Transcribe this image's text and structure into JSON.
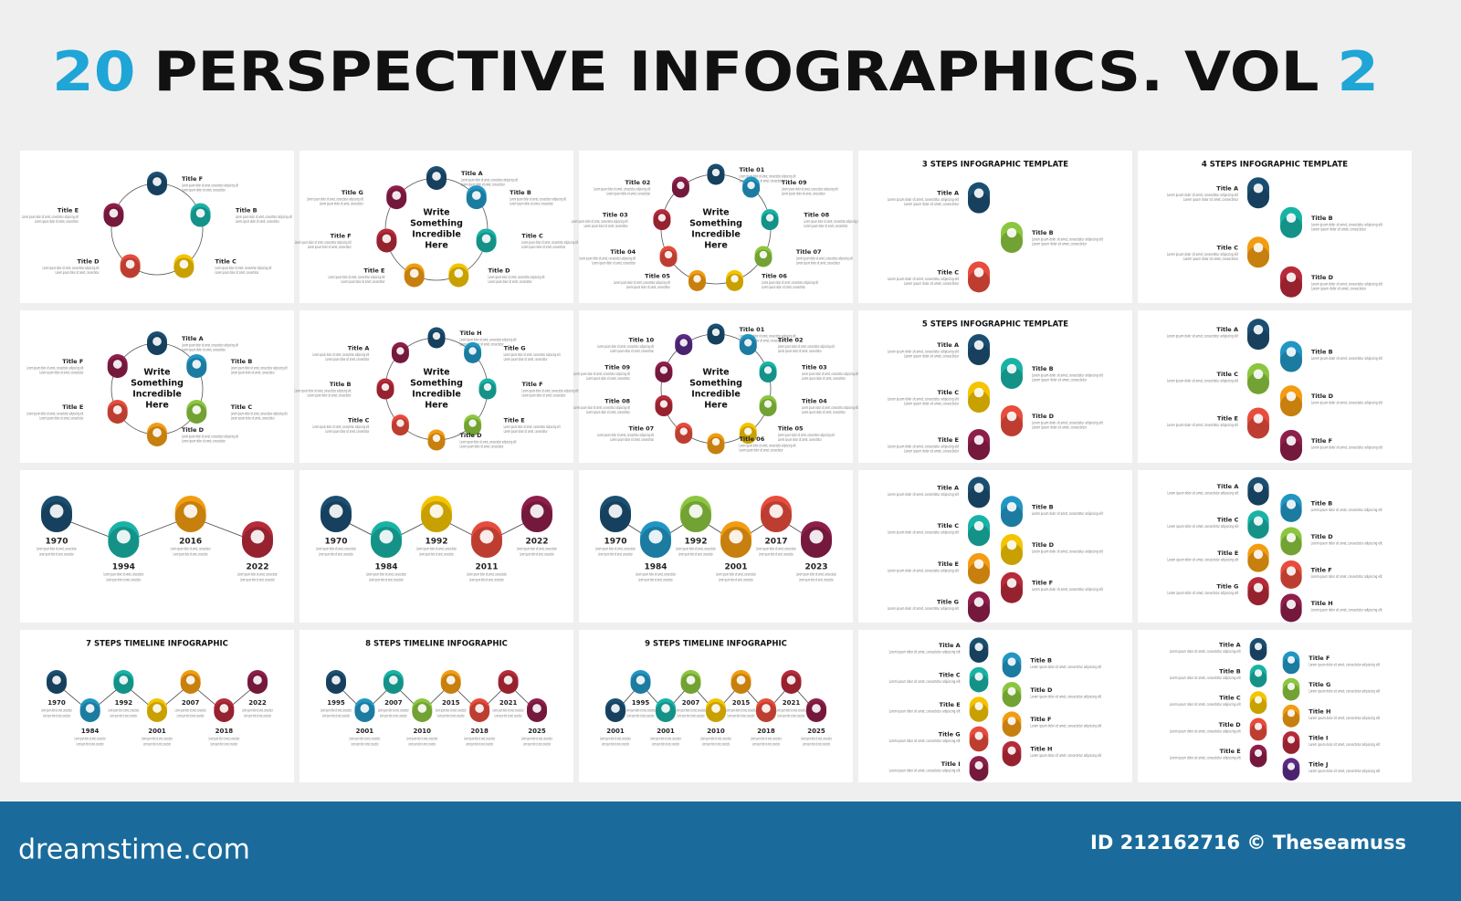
{
  "header": {
    "title_parts": [
      "20",
      "PERSPECTIVE INFOGRAPHICS. VOL",
      "2"
    ]
  },
  "palette": [
    "#1b4f72",
    "#2196c4",
    "#19b3a6",
    "#8cc63f",
    "#f5c400",
    "#f39c12",
    "#e74c3c",
    "#b72a3a",
    "#8e1e4a",
    "#5b2a86"
  ],
  "lorem": "Lorem ipsum dolor sit amet, consectetur adipiscing elit",
  "lorem_short": "Lorem ipsum dolor sit amet, consectetur",
  "center_text": [
    "Write",
    "Something",
    "Incredible",
    "Here"
  ],
  "panels": [
    {
      "kind": "cycle",
      "center": false,
      "items": [
        {
          "label": "Title F"
        },
        {
          "label": "Title B"
        },
        {
          "label": "Title C"
        },
        {
          "label": "Title D"
        },
        {
          "label": "Title E"
        }
      ]
    },
    {
      "kind": "cycle",
      "center": true,
      "items": [
        {
          "label": "Title A"
        },
        {
          "label": "Title B"
        },
        {
          "label": "Title C"
        },
        {
          "label": "Title D"
        },
        {
          "label": "Title E"
        },
        {
          "label": "Title F"
        },
        {
          "label": "Title G"
        }
      ]
    },
    {
      "kind": "cycle",
      "center": true,
      "items": [
        {
          "label": "Title 01"
        },
        {
          "label": "Title 09"
        },
        {
          "label": "Title 08"
        },
        {
          "label": "Title 07"
        },
        {
          "label": "Title 06"
        },
        {
          "label": "Title 05"
        },
        {
          "label": "Title 04"
        },
        {
          "label": "Title 03"
        },
        {
          "label": "Title 02"
        }
      ]
    },
    {
      "kind": "list",
      "heading": "3 STEPS INFOGRAPHIC TEMPLATE",
      "items": [
        {
          "label": "Title A"
        },
        {
          "label": "Title B"
        },
        {
          "label": "Title C"
        }
      ]
    },
    {
      "kind": "list",
      "heading": "4 STEPS INFOGRAPHIC TEMPLATE",
      "items": [
        {
          "label": "Title A"
        },
        {
          "label": "Title B"
        },
        {
          "label": "Title C"
        },
        {
          "label": "Title D"
        }
      ]
    },
    {
      "kind": "cycle",
      "center": true,
      "items": [
        {
          "label": "Title A"
        },
        {
          "label": "Title B"
        },
        {
          "label": "Title C"
        },
        {
          "label": "Title D"
        },
        {
          "label": "Title E"
        },
        {
          "label": "Title F"
        }
      ]
    },
    {
      "kind": "cycle",
      "center": true,
      "items": [
        {
          "label": "Title H"
        },
        {
          "label": "Title G"
        },
        {
          "label": "Title F"
        },
        {
          "label": "Title E"
        },
        {
          "label": "Title D"
        },
        {
          "label": "Title C"
        },
        {
          "label": "Title B"
        },
        {
          "label": "Title A"
        }
      ]
    },
    {
      "kind": "cycle",
      "center": true,
      "items": [
        {
          "label": "Title 01"
        },
        {
          "label": "Title 02"
        },
        {
          "label": "Title 03"
        },
        {
          "label": "Title 04"
        },
        {
          "label": "Title 05"
        },
        {
          "label": "Title 06"
        },
        {
          "label": "Title 07"
        },
        {
          "label": "Title 08"
        },
        {
          "label": "Title 09"
        },
        {
          "label": "Title 10"
        }
      ]
    },
    {
      "kind": "list",
      "heading": "5 STEPS INFOGRAPHIC TEMPLATE",
      "items": [
        {
          "label": "Title A"
        },
        {
          "label": "Title B"
        },
        {
          "label": "Title C"
        },
        {
          "label": "Title D"
        },
        {
          "label": "Title E"
        }
      ]
    },
    {
      "kind": "list",
      "items": [
        {
          "label": "Title A"
        },
        {
          "label": "Title B"
        },
        {
          "label": "Title C"
        },
        {
          "label": "Title D"
        },
        {
          "label": "Title E"
        },
        {
          "label": "Title F"
        }
      ]
    },
    {
      "kind": "timeline",
      "items": [
        {
          "label": "1970"
        },
        {
          "label": "1994"
        },
        {
          "label": "2016"
        },
        {
          "label": "2022"
        }
      ]
    },
    {
      "kind": "timeline",
      "items": [
        {
          "label": "1970"
        },
        {
          "label": "1984"
        },
        {
          "label": "1992"
        },
        {
          "label": "2011"
        },
        {
          "label": "2022"
        }
      ]
    },
    {
      "kind": "timeline",
      "items": [
        {
          "label": "1970"
        },
        {
          "label": "1984"
        },
        {
          "label": "1992"
        },
        {
          "label": "2001"
        },
        {
          "label": "2017"
        },
        {
          "label": "2023"
        }
      ]
    },
    {
      "kind": "list",
      "items": [
        {
          "label": "Title A"
        },
        {
          "label": "Title B"
        },
        {
          "label": "Title C"
        },
        {
          "label": "Title D"
        },
        {
          "label": "Title E"
        },
        {
          "label": "Title F"
        },
        {
          "label": "Title G"
        }
      ]
    },
    {
      "kind": "list",
      "items": [
        {
          "label": "Title A"
        },
        {
          "label": "Title B"
        },
        {
          "label": "Title C"
        },
        {
          "label": "Title D"
        },
        {
          "label": "Title E"
        },
        {
          "label": "Title F"
        },
        {
          "label": "Title G"
        },
        {
          "label": "Title H"
        }
      ]
    },
    {
      "kind": "timeline",
      "heading": "7 STEPS TIMELINE INFOGRAPHIC",
      "items": [
        {
          "label": "1970"
        },
        {
          "label": "1984"
        },
        {
          "label": "1992"
        },
        {
          "label": "2001"
        },
        {
          "label": "2007"
        },
        {
          "label": "2018"
        },
        {
          "label": "2022"
        }
      ]
    },
    {
      "kind": "timeline",
      "heading": "8 STEPS TIMELINE INFOGRAPHIC",
      "items": [
        {
          "label": "1995"
        },
        {
          "label": "2001"
        },
        {
          "label": "2007"
        },
        {
          "label": "2010"
        },
        {
          "label": "2015"
        },
        {
          "label": "2018"
        },
        {
          "label": "2021"
        },
        {
          "label": "2025"
        }
      ]
    },
    {
      "kind": "timeline",
      "heading": "9 STEPS TIMELINE INFOGRAPHIC",
      "start": "down",
      "items": [
        {
          "label": "2001"
        },
        {
          "label": "1995"
        },
        {
          "label": "2001"
        },
        {
          "label": "2007"
        },
        {
          "label": "2010"
        },
        {
          "label": "2015"
        },
        {
          "label": "2018"
        },
        {
          "label": "2021"
        },
        {
          "label": "2025"
        }
      ]
    },
    {
      "kind": "list",
      "items": [
        {
          "label": "Title A"
        },
        {
          "label": "Title B"
        },
        {
          "label": "Title C"
        },
        {
          "label": "Title D"
        },
        {
          "label": "Title E"
        },
        {
          "label": "Title F"
        },
        {
          "label": "Title G"
        },
        {
          "label": "Title H"
        },
        {
          "label": "Title I"
        }
      ]
    },
    {
      "kind": "list",
      "items": [
        {
          "label": "Title A"
        },
        {
          "label": "Title F"
        },
        {
          "label": "Title B"
        },
        {
          "label": "Title G"
        },
        {
          "label": "Title C"
        },
        {
          "label": "Title H"
        },
        {
          "label": "Title D"
        },
        {
          "label": "Title I"
        },
        {
          "label": "Title E"
        },
        {
          "label": "Title J"
        }
      ]
    }
  ],
  "footer": {
    "site": "dreamstime.com",
    "credit": "ID 212162716 © Theseamuss"
  }
}
